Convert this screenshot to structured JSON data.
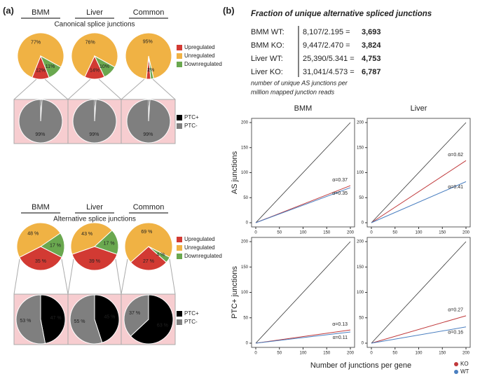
{
  "panel_a": {
    "label": "(a)",
    "canonical_title": "Canonical splice junctions",
    "alternative_title": "Alternative splice junctions"
  },
  "panel_b": {
    "label": "(b)",
    "title": "Fraction of unique alternative spliced junctions",
    "rows": [
      {
        "label": "BMM WT:",
        "formula": "8,107/2.195 =",
        "result": "3,693"
      },
      {
        "label": "BMM KO:",
        "formula": "9,447/2.470 =",
        "result": "3,824"
      },
      {
        "label": "Liver WT:",
        "formula": "25,390/5.341 =",
        "result": "4,753"
      },
      {
        "label": "Liver KO:",
        "formula": "31,041/4.573 =",
        "result": "6,787"
      }
    ],
    "note": [
      "number of unique AS junctions per",
      "million mapped junction reads"
    ],
    "x_label": "Number of junctions per gene"
  },
  "chart_data": [
    {
      "type": "pie",
      "title": "BMM",
      "categories": [
        "Upregulated",
        "Unregulated",
        "Downregulated"
      ],
      "values": [
        12,
        77,
        11
      ],
      "value_labels": [
        "12%",
        "77%",
        "11%"
      ],
      "colors": [
        "#d23a33",
        "#f0b244",
        "#6aa84f"
      ]
    },
    {
      "type": "pie",
      "title": "Liver",
      "categories": [
        "Upregulated",
        "Unregulated",
        "Downregulated"
      ],
      "values": [
        14,
        76,
        10
      ],
      "value_labels": [
        "14%",
        "76%",
        "10%"
      ],
      "colors": [
        "#d23a33",
        "#f0b244",
        "#6aa84f"
      ]
    },
    {
      "type": "pie",
      "title": "Common",
      "categories": [
        "Upregulated",
        "Unregulated",
        "Downregulated"
      ],
      "values": [
        3,
        95,
        2
      ],
      "value_labels": [
        "3%",
        "95%",
        "2%"
      ],
      "colors": [
        "#d23a33",
        "#f0b244",
        "#6aa84f"
      ]
    },
    {
      "type": "pie",
      "categories": [
        "PTC+",
        "PTC-"
      ],
      "values": [
        1,
        99
      ],
      "value_labels": [
        "1%",
        "99%"
      ],
      "colors": [
        "#000000",
        "#7f7f7f"
      ]
    },
    {
      "type": "pie",
      "categories": [
        "PTC+",
        "PTC-"
      ],
      "values": [
        1,
        99
      ],
      "value_labels": [
        "1%",
        "99%"
      ],
      "colors": [
        "#000000",
        "#7f7f7f"
      ]
    },
    {
      "type": "pie",
      "categories": [
        "PTC+",
        "PTC-"
      ],
      "values": [
        1,
        99
      ],
      "value_labels": [
        "1%",
        "99%"
      ],
      "colors": [
        "#000000",
        "#7f7f7f"
      ]
    },
    {
      "type": "pie",
      "title": "BMM",
      "categories": [
        "Upregulated",
        "Unregulated",
        "Downregulated"
      ],
      "values": [
        35,
        48,
        17
      ],
      "value_labels": [
        "35 %",
        "48 %",
        "17 %"
      ],
      "colors": [
        "#d23a33",
        "#f0b244",
        "#6aa84f"
      ]
    },
    {
      "type": "pie",
      "title": "Liver",
      "categories": [
        "Upregulated",
        "Unregulated",
        "Downregulated"
      ],
      "values": [
        39,
        43,
        17
      ],
      "value_labels": [
        "39 %",
        "43 %",
        "17 %"
      ],
      "colors": [
        "#d23a33",
        "#f0b244",
        "#6aa84f"
      ]
    },
    {
      "type": "pie",
      "title": "Common",
      "categories": [
        "Upregulated",
        "Unregulated",
        "Downregulated"
      ],
      "values": [
        27,
        69,
        4
      ],
      "value_labels": [
        "27 %",
        "69 %",
        "4 %"
      ],
      "colors": [
        "#d23a33",
        "#f0b244",
        "#6aa84f"
      ]
    },
    {
      "type": "pie",
      "categories": [
        "PTC+",
        "PTC-"
      ],
      "values": [
        47,
        53
      ],
      "value_labels": [
        "47 %",
        "53 %"
      ],
      "colors": [
        "#000000",
        "#7f7f7f"
      ]
    },
    {
      "type": "pie",
      "categories": [
        "PTC+",
        "PTC-"
      ],
      "values": [
        45,
        55
      ],
      "value_labels": [
        "45 %",
        "55 %"
      ],
      "colors": [
        "#000000",
        "#7f7f7f"
      ]
    },
    {
      "type": "pie",
      "categories": [
        "PTC+",
        "PTC-"
      ],
      "values": [
        63,
        37
      ],
      "value_labels": [
        "63 %",
        "37 %"
      ],
      "colors": [
        "#000000",
        "#7f7f7f"
      ]
    },
    {
      "type": "line",
      "title": "BMM",
      "y_label": "AS junctions",
      "x": [
        0,
        200
      ],
      "series": [
        {
          "name": "KO",
          "color": "#c0393b",
          "values": [
            0,
            74
          ]
        },
        {
          "name": "WT",
          "color": "#4a7fc0",
          "values": [
            0,
            70
          ]
        }
      ],
      "annotations": [
        "α=0.37",
        "α=0.35"
      ],
      "xlim": [
        0,
        200
      ],
      "ylim": [
        0,
        200
      ],
      "xticks": [
        0,
        50,
        100,
        150,
        200
      ],
      "yticks": [
        0,
        50,
        100,
        150,
        200
      ]
    },
    {
      "type": "line",
      "title": "Liver",
      "x": [
        0,
        200
      ],
      "series": [
        {
          "name": "KO",
          "color": "#c0393b",
          "values": [
            0,
            124
          ]
        },
        {
          "name": "WT",
          "color": "#4a7fc0",
          "values": [
            0,
            82
          ]
        }
      ],
      "annotations": [
        "α=0.62",
        "α=0.41"
      ],
      "xlim": [
        0,
        200
      ],
      "ylim": [
        0,
        200
      ],
      "xticks": [
        0,
        50,
        100,
        150,
        200
      ],
      "yticks": [
        0,
        50,
        100,
        150,
        200
      ]
    },
    {
      "type": "line",
      "y_label": "PTC+ junctions",
      "x": [
        0,
        200
      ],
      "series": [
        {
          "name": "KO",
          "color": "#c0393b",
          "values": [
            0,
            26
          ]
        },
        {
          "name": "WT",
          "color": "#4a7fc0",
          "values": [
            0,
            22
          ]
        }
      ],
      "annotations": [
        "α=0.13",
        "α=0.11"
      ],
      "xlim": [
        0,
        200
      ],
      "ylim": [
        0,
        200
      ],
      "xticks": [
        0,
        50,
        100,
        150,
        200
      ],
      "yticks": [
        0,
        50,
        100,
        150,
        200
      ]
    },
    {
      "type": "line",
      "x": [
        0,
        200
      ],
      "series": [
        {
          "name": "KO",
          "color": "#c0393b",
          "values": [
            0,
            54
          ]
        },
        {
          "name": "WT",
          "color": "#4a7fc0",
          "values": [
            0,
            32
          ]
        }
      ],
      "annotations": [
        "α=0.27",
        "α=0.16"
      ],
      "xlim": [
        0,
        200
      ],
      "ylim": [
        0,
        200
      ],
      "xticks": [
        0,
        50,
        100,
        150,
        200
      ],
      "yticks": [
        0,
        50,
        100,
        150,
        200
      ]
    }
  ]
}
